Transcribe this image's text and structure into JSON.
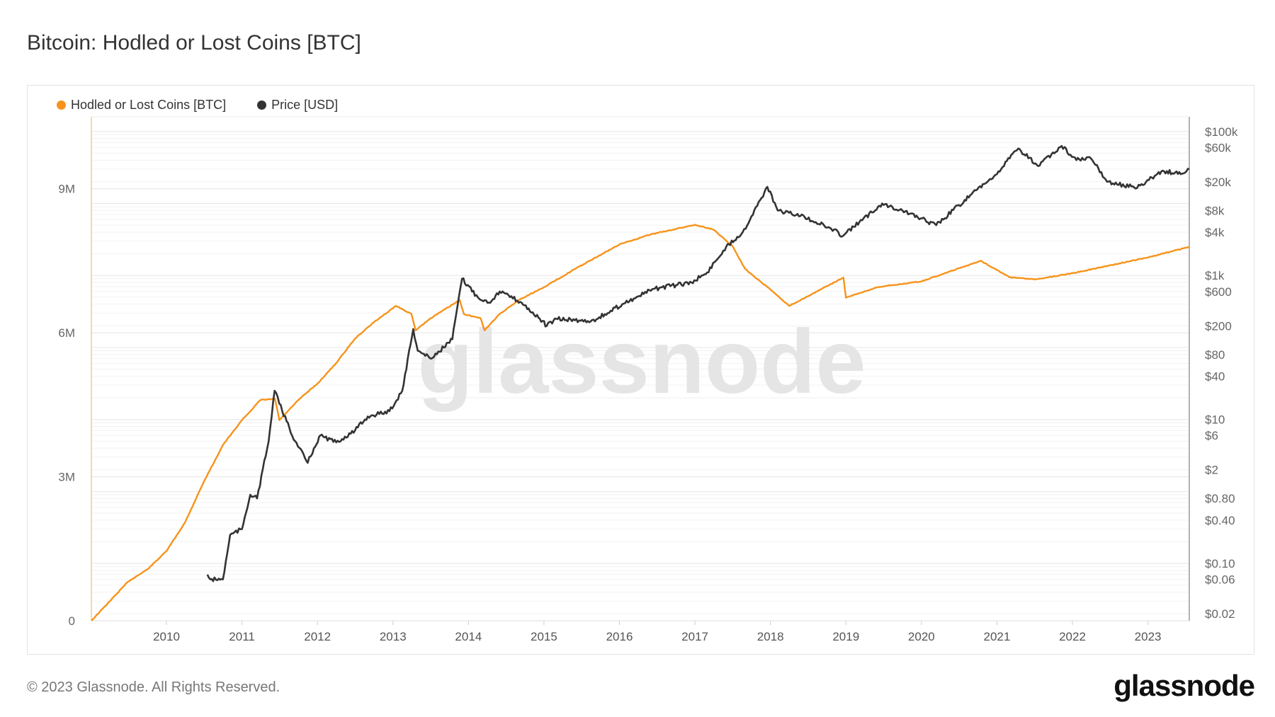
{
  "footer": {
    "copyright": "© 2023 Glassnode. All Rights Reserved.",
    "logo": "glassnode"
  },
  "watermark": "glassnode",
  "chart_data": {
    "type": "line",
    "title": "Bitcoin: Hodled or Lost Coins [BTC]",
    "legend_position": "top-left",
    "grid": true,
    "x_ticks": [
      "2010",
      "2011",
      "2012",
      "2013",
      "2014",
      "2015",
      "2016",
      "2017",
      "2018",
      "2019",
      "2020",
      "2021",
      "2022",
      "2023"
    ],
    "xlim": [
      "2009-01-03",
      "2023-07-20"
    ],
    "y_left": {
      "scale": "linear",
      "ylim": [
        0,
        10500000
      ],
      "ticks": [
        {
          "v": 0,
          "label": "0"
        },
        {
          "v": 3000000,
          "label": "3M"
        },
        {
          "v": 6000000,
          "label": "6M"
        },
        {
          "v": 9000000,
          "label": "9M"
        }
      ]
    },
    "y_right": {
      "scale": "log",
      "ylim": [
        0.016,
        160000
      ],
      "ticks": [
        {
          "v": 100000,
          "label": "$100k"
        },
        {
          "v": 60000,
          "label": "$60k"
        },
        {
          "v": 20000,
          "label": "$20k"
        },
        {
          "v": 8000,
          "label": "$8k"
        },
        {
          "v": 4000,
          "label": "$4k"
        },
        {
          "v": 1000,
          "label": "$1k"
        },
        {
          "v": 600,
          "label": "$600"
        },
        {
          "v": 200,
          "label": "$200"
        },
        {
          "v": 80,
          "label": "$80"
        },
        {
          "v": 40,
          "label": "$40"
        },
        {
          "v": 10,
          "label": "$10"
        },
        {
          "v": 6,
          "label": "$6"
        },
        {
          "v": 2,
          "label": "$2"
        },
        {
          "v": 0.8,
          "label": "$0.80"
        },
        {
          "v": 0.4,
          "label": "$0.40"
        },
        {
          "v": 0.1,
          "label": "$0.10"
        },
        {
          "v": 0.06,
          "label": "$0.06"
        },
        {
          "v": 0.02,
          "label": "$0.02"
        }
      ]
    },
    "series": [
      {
        "name": "Hodled or Lost Coins [BTC]",
        "axis": "left",
        "color": "#f7931a",
        "points": [
          [
            "2009-01-03",
            0
          ],
          [
            "2009-07-01",
            820000
          ],
          [
            "2009-10-01",
            1070000
          ],
          [
            "2010-01-01",
            1450000
          ],
          [
            "2010-04-01",
            2050000
          ],
          [
            "2010-07-01",
            2900000
          ],
          [
            "2010-10-01",
            3660000
          ],
          [
            "2011-01-01",
            4180000
          ],
          [
            "2011-04-01",
            4600000
          ],
          [
            "2011-06-10",
            4620000
          ],
          [
            "2011-07-01",
            4180000
          ],
          [
            "2011-10-01",
            4600000
          ],
          [
            "2012-01-01",
            4940000
          ],
          [
            "2012-04-01",
            5370000
          ],
          [
            "2012-07-01",
            5880000
          ],
          [
            "2012-10-01",
            6220000
          ],
          [
            "2013-01-15",
            6560000
          ],
          [
            "2013-04-01",
            6390000
          ],
          [
            "2013-04-20",
            6050000
          ],
          [
            "2013-07-01",
            6300000
          ],
          [
            "2013-11-20",
            6680000
          ],
          [
            "2013-12-10",
            6390000
          ],
          [
            "2014-03-01",
            6300000
          ],
          [
            "2014-03-20",
            6050000
          ],
          [
            "2014-06-01",
            6390000
          ],
          [
            "2014-09-01",
            6680000
          ],
          [
            "2015-01-01",
            6950000
          ],
          [
            "2015-06-01",
            7330000
          ],
          [
            "2016-01-01",
            7840000
          ],
          [
            "2016-06-01",
            8050000
          ],
          [
            "2017-01-01",
            8250000
          ],
          [
            "2017-04-01",
            8150000
          ],
          [
            "2017-07-01",
            7810000
          ],
          [
            "2017-09-01",
            7330000
          ],
          [
            "2018-01-01",
            6900000
          ],
          [
            "2018-04-01",
            6560000
          ],
          [
            "2018-12-20",
            7150000
          ],
          [
            "2019-01-01",
            6730000
          ],
          [
            "2019-06-01",
            6950000
          ],
          [
            "2020-01-01",
            7070000
          ],
          [
            "2020-10-15",
            7500000
          ],
          [
            "2021-03-01",
            7160000
          ],
          [
            "2021-07-01",
            7110000
          ],
          [
            "2022-01-01",
            7240000
          ],
          [
            "2023-01-01",
            7570000
          ],
          [
            "2023-07-20",
            7790000
          ]
        ]
      },
      {
        "name": "Price [USD]",
        "axis": "right",
        "color": "#333333",
        "points": [
          [
            "2010-07-18",
            0.07
          ],
          [
            "2010-08-01",
            0.06
          ],
          [
            "2010-10-01",
            0.06
          ],
          [
            "2010-11-05",
            0.25
          ],
          [
            "2011-01-01",
            0.3
          ],
          [
            "2011-02-10",
            0.9
          ],
          [
            "2011-03-15",
            0.8
          ],
          [
            "2011-05-10",
            5
          ],
          [
            "2011-06-08",
            25
          ],
          [
            "2011-07-15",
            13
          ],
          [
            "2011-09-15",
            5
          ],
          [
            "2011-11-15",
            2.5
          ],
          [
            "2011-12-15",
            4
          ],
          [
            "2012-01-15",
            6
          ],
          [
            "2012-04-01",
            4.8
          ],
          [
            "2012-07-01",
            7
          ],
          [
            "2012-09-01",
            11
          ],
          [
            "2012-12-15",
            13
          ],
          [
            "2013-02-15",
            25
          ],
          [
            "2013-04-09",
            180
          ],
          [
            "2013-05-01",
            90
          ],
          [
            "2013-07-05",
            70
          ],
          [
            "2013-10-15",
            130
          ],
          [
            "2013-12-01",
            900
          ],
          [
            "2014-02-15",
            500
          ],
          [
            "2014-04-10",
            420
          ],
          [
            "2014-06-01",
            600
          ],
          [
            "2014-09-15",
            420
          ],
          [
            "2015-01-15",
            200
          ],
          [
            "2015-03-01",
            250
          ],
          [
            "2015-08-15",
            230
          ],
          [
            "2015-11-05",
            300
          ],
          [
            "2016-01-15",
            400
          ],
          [
            "2016-06-15",
            650
          ],
          [
            "2016-12-15",
            800
          ],
          [
            "2017-03-01",
            1100
          ],
          [
            "2017-06-01",
            2500
          ],
          [
            "2017-08-20",
            4000
          ],
          [
            "2017-12-17",
            17000
          ],
          [
            "2018-02-05",
            8000
          ],
          [
            "2018-06-15",
            6500
          ],
          [
            "2018-11-25",
            4000
          ],
          [
            "2018-12-15",
            3500
          ],
          [
            "2019-06-25",
            10000
          ],
          [
            "2019-10-01",
            8000
          ],
          [
            "2020-03-13",
            5000
          ],
          [
            "2020-07-01",
            9500
          ],
          [
            "2020-12-25",
            25000
          ],
          [
            "2021-04-14",
            58000
          ],
          [
            "2021-07-20",
            33000
          ],
          [
            "2021-11-10",
            63000
          ],
          [
            "2022-01-20",
            40000
          ],
          [
            "2022-04-01",
            42000
          ],
          [
            "2022-06-18",
            20000
          ],
          [
            "2022-11-10",
            16500
          ],
          [
            "2023-01-20",
            23000
          ],
          [
            "2023-03-20",
            28000
          ],
          [
            "2023-06-15",
            26000
          ],
          [
            "2023-07-20",
            30000
          ]
        ]
      }
    ]
  }
}
